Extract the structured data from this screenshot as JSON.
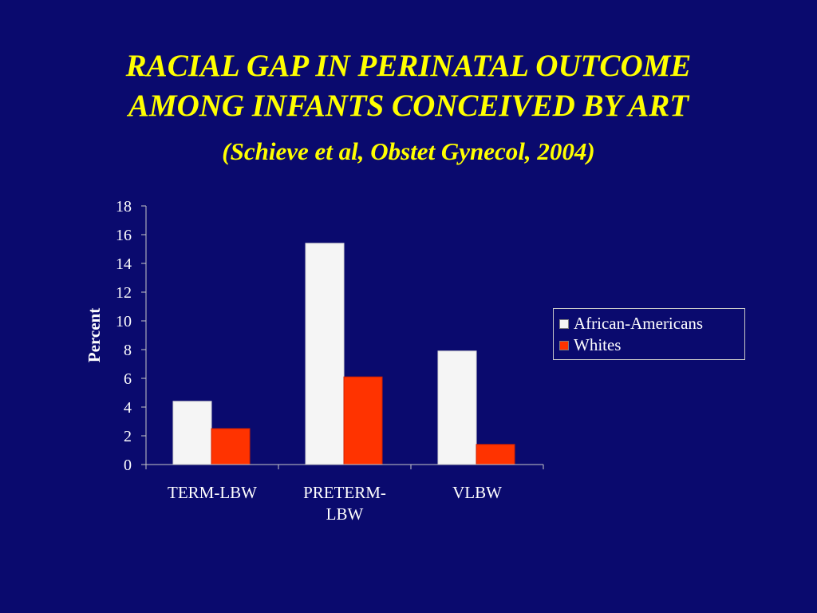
{
  "slide": {
    "title_line1": "RACIAL GAP IN PERINATAL OUTCOME",
    "title_line2": "AMONG INFANTS CONCEIVED BY ART",
    "citation": "(Schieve et al, Obstet Gynecol, 2004)"
  },
  "colors": {
    "background": "#0a0a6e",
    "title": "#ffff00",
    "series_african_americans": "#f5f5f5",
    "series_whites": "#ff3300"
  },
  "chart_data": {
    "type": "bar",
    "title": "",
    "xlabel": "",
    "ylabel": "Percent",
    "ylim": [
      0,
      18
    ],
    "yticks": [
      0,
      2,
      4,
      6,
      8,
      10,
      12,
      14,
      16,
      18
    ],
    "categories": [
      "TERM-LBW",
      "PRETERM-LBW",
      "VLBW"
    ],
    "category_lines": [
      [
        "TERM-LBW"
      ],
      [
        "PRETERM-",
        "LBW"
      ],
      [
        "VLBW"
      ]
    ],
    "series": [
      {
        "name": "African-Americans",
        "color": "#f5f5f5",
        "values": [
          4.4,
          15.4,
          7.9
        ]
      },
      {
        "name": "Whites",
        "color": "#ff3300",
        "values": [
          2.5,
          6.1,
          1.4
        ]
      }
    ],
    "grid": false,
    "legend_position": "right"
  }
}
